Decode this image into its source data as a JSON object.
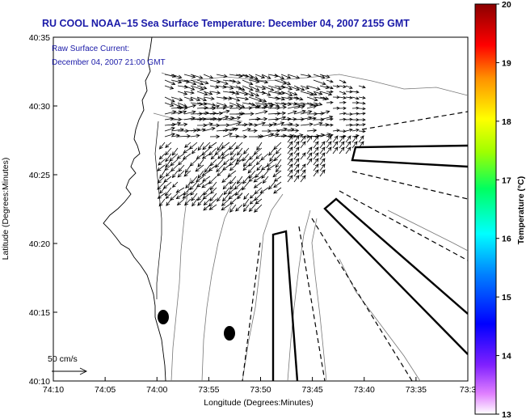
{
  "chart_data": {
    "type": "map",
    "title": "RU COOL  NOAA−15  Sea Surface Temperature:  December 04, 2007 2155 GMT",
    "annotation_lines": [
      "Raw Surface Current:",
      "December 04, 2007 21:00 GMT"
    ],
    "xlabel": "Longitude (Degrees:Minutes)",
    "ylabel": "Latitude (Degrees:Minutes)",
    "x_ticks": [
      "74:10",
      "74:05",
      "74:00",
      "73:55",
      "73:50",
      "73:45",
      "73:40",
      "73:35",
      "73:3"
    ],
    "y_ticks": [
      "40:35",
      "40:30",
      "40:25",
      "40:20",
      "40:15",
      "40:10"
    ],
    "xlim_minutes_west": [
      10,
      -28
    ],
    "ylim_minutes_north": [
      10,
      35
    ],
    "scale_label": "50 cm/s",
    "colorbar": {
      "label": "Temperature (°C)",
      "ticks": [
        "20",
        "19",
        "18",
        "17",
        "16",
        "15",
        "14",
        "13"
      ],
      "range": [
        13,
        20
      ],
      "colors": [
        "#ff00ff",
        "#0000ff",
        "#00e0ff",
        "#00ff00",
        "#ffff00",
        "#ff8000",
        "#ff0000",
        "#8b0000"
      ]
    },
    "grid": false
  }
}
